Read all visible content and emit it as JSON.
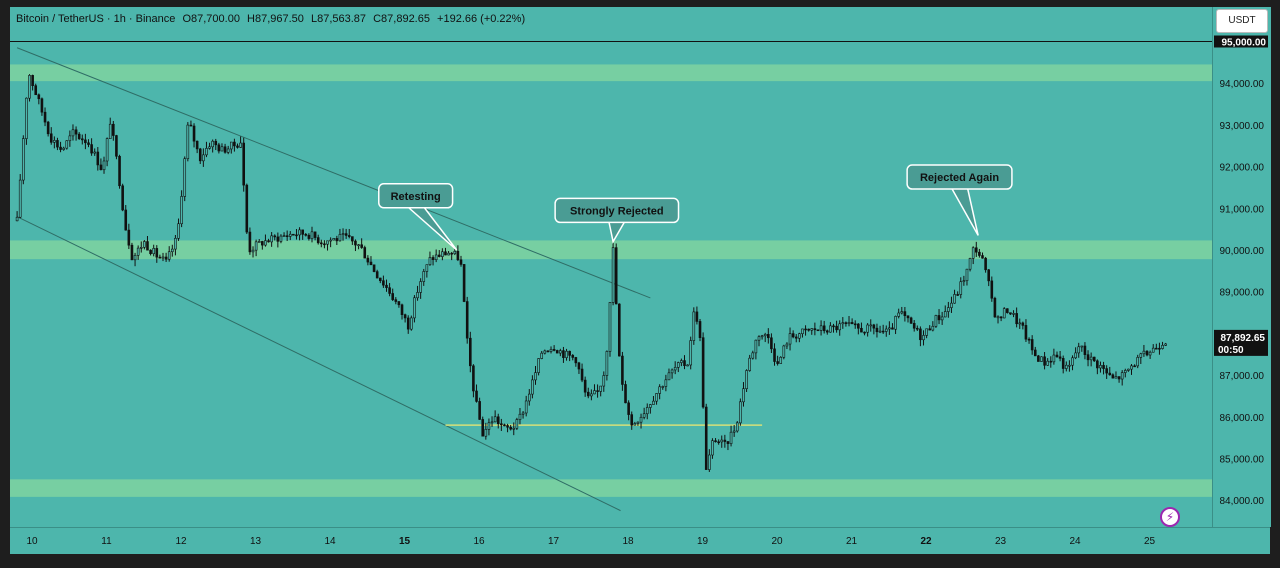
{
  "legend": {
    "symbol": "Bitcoin / TetherUS · 1h · Binance",
    "open": "O87,700.00",
    "high": "H87,967.50",
    "low": "L87,563.87",
    "close": "C87,892.65",
    "change": "+192.66 (+0.22%)"
  },
  "currency": "USDT",
  "price_axis_labels": [
    "95,000.00",
    "94,000.00",
    "93,000.00",
    "92,000.00",
    "91,000.00",
    "90,000.00",
    "89,000.00",
    "88,000.00",
    "87,000.00",
    "86,000.00",
    "85,000.00",
    "84,000.00"
  ],
  "current_price": {
    "price": "87,892.65",
    "countdown": "00:50"
  },
  "time_axis_labels": [
    {
      "text": "10",
      "bold": false
    },
    {
      "text": "11",
      "bold": false
    },
    {
      "text": "12",
      "bold": false
    },
    {
      "text": "13",
      "bold": false
    },
    {
      "text": "14",
      "bold": false
    },
    {
      "text": "15",
      "bold": true
    },
    {
      "text": "16",
      "bold": false
    },
    {
      "text": "17",
      "bold": false
    },
    {
      "text": "18",
      "bold": false
    },
    {
      "text": "19",
      "bold": false
    },
    {
      "text": "20",
      "bold": false
    },
    {
      "text": "21",
      "bold": false
    },
    {
      "text": "22",
      "bold": true
    },
    {
      "text": "23",
      "bold": false
    },
    {
      "text": "24",
      "bold": false
    },
    {
      "text": "25",
      "bold": false
    }
  ],
  "colors": {
    "background": "#4db6ac",
    "zone": "#7fd3a0",
    "candle": "#111111",
    "price_label_bg": "#111111"
  },
  "chart_data": {
    "type": "candlestick",
    "x_unit": "day of month",
    "y_unit": "USDT",
    "ylim": [
      83500,
      95400
    ],
    "xlim": [
      9.6,
      25.8
    ],
    "price_line": 95000,
    "last_price": 87892.65,
    "zones": [
      {
        "low": 94050,
        "high": 94450
      },
      {
        "low": 89780,
        "high": 90230
      },
      {
        "low": 84080,
        "high": 84500
      }
    ],
    "trendlines": [
      {
        "from": [
          9.8,
          94850
        ],
        "to": [
          18.3,
          88850
        ]
      },
      {
        "from": [
          9.8,
          90800
        ],
        "to": [
          17.9,
          83750
        ]
      }
    ],
    "support_line": {
      "from": [
        15.55,
        85800
      ],
      "to": [
        19.8,
        85800
      ]
    },
    "annotations": [
      {
        "text": "Retesting",
        "box_at": [
          15.15,
          91300
        ],
        "point_at": [
          15.7,
          90000
        ]
      },
      {
        "text": "Strongly Rejected",
        "box_at": [
          17.85,
          90950
        ],
        "point_at": [
          17.8,
          90200
        ]
      },
      {
        "text": "Rejected Again",
        "box_at": [
          22.45,
          91750
        ],
        "point_at": [
          22.7,
          90350
        ]
      }
    ],
    "price_path": [
      [
        9.8,
        90700
      ],
      [
        9.95,
        94300
      ],
      [
        10.1,
        93500
      ],
      [
        10.25,
        92700
      ],
      [
        10.4,
        92400
      ],
      [
        10.55,
        92800
      ],
      [
        10.75,
        92600
      ],
      [
        10.95,
        91900
      ],
      [
        11.05,
        93100
      ],
      [
        11.15,
        92000
      ],
      [
        11.25,
        90600
      ],
      [
        11.35,
        89800
      ],
      [
        11.5,
        90200
      ],
      [
        11.65,
        89900
      ],
      [
        11.8,
        89700
      ],
      [
        11.95,
        90300
      ],
      [
        12.1,
        93100
      ],
      [
        12.25,
        92200
      ],
      [
        12.4,
        92600
      ],
      [
        12.55,
        92400
      ],
      [
        12.7,
        92500
      ],
      [
        12.8,
        92600
      ],
      [
        12.9,
        90000
      ],
      [
        13.1,
        90200
      ],
      [
        13.3,
        90300
      ],
      [
        13.5,
        90400
      ],
      [
        13.7,
        90400
      ],
      [
        13.9,
        90200
      ],
      [
        14.0,
        90250
      ],
      [
        14.2,
        90300
      ],
      [
        14.4,
        90100
      ],
      [
        14.6,
        89500
      ],
      [
        14.8,
        89000
      ],
      [
        14.9,
        88700
      ],
      [
        15.05,
        88200
      ],
      [
        15.2,
        89200
      ],
      [
        15.35,
        89800
      ],
      [
        15.5,
        89900
      ],
      [
        15.6,
        89950
      ],
      [
        15.75,
        89800
      ],
      [
        15.85,
        87600
      ],
      [
        15.95,
        86400
      ],
      [
        16.05,
        85600
      ],
      [
        16.2,
        86000
      ],
      [
        16.35,
        85700
      ],
      [
        16.5,
        85800
      ],
      [
        16.6,
        86200
      ],
      [
        16.75,
        87000
      ],
      [
        16.85,
        87600
      ],
      [
        17.0,
        87700
      ],
      [
        17.15,
        87500
      ],
      [
        17.3,
        87400
      ],
      [
        17.45,
        86400
      ],
      [
        17.6,
        86600
      ],
      [
        17.7,
        87200
      ],
      [
        17.8,
        90000
      ],
      [
        17.9,
        86900
      ],
      [
        18.05,
        85800
      ],
      [
        18.2,
        86100
      ],
      [
        18.35,
        86500
      ],
      [
        18.5,
        86900
      ],
      [
        18.65,
        87200
      ],
      [
        18.8,
        87300
      ],
      [
        18.9,
        88700
      ],
      [
        18.97,
        87800
      ],
      [
        19.05,
        84700
      ],
      [
        19.15,
        85500
      ],
      [
        19.3,
        85300
      ],
      [
        19.45,
        85800
      ],
      [
        19.6,
        87200
      ],
      [
        19.75,
        88000
      ],
      [
        19.9,
        87900
      ],
      [
        20.0,
        87200
      ],
      [
        20.15,
        87900
      ],
      [
        20.3,
        88000
      ],
      [
        20.5,
        88100
      ],
      [
        20.7,
        88100
      ],
      [
        20.9,
        88200
      ],
      [
        21.1,
        88100
      ],
      [
        21.3,
        88100
      ],
      [
        21.5,
        88000
      ],
      [
        21.65,
        88500
      ],
      [
        21.8,
        88200
      ],
      [
        21.95,
        87900
      ],
      [
        22.1,
        88300
      ],
      [
        22.25,
        88500
      ],
      [
        22.4,
        88900
      ],
      [
        22.55,
        89500
      ],
      [
        22.65,
        90100
      ],
      [
        22.75,
        89800
      ],
      [
        22.85,
        89100
      ],
      [
        22.95,
        88300
      ],
      [
        23.1,
        88600
      ],
      [
        23.3,
        88100
      ],
      [
        23.45,
        87500
      ],
      [
        23.6,
        87300
      ],
      [
        23.75,
        87500
      ],
      [
        23.9,
        87100
      ],
      [
        24.05,
        87700
      ],
      [
        24.2,
        87400
      ],
      [
        24.35,
        87200
      ],
      [
        24.5,
        86900
      ],
      [
        24.65,
        87000
      ],
      [
        24.8,
        87300
      ],
      [
        24.95,
        87500
      ],
      [
        25.1,
        87700
      ],
      [
        25.25,
        87900
      ]
    ]
  }
}
